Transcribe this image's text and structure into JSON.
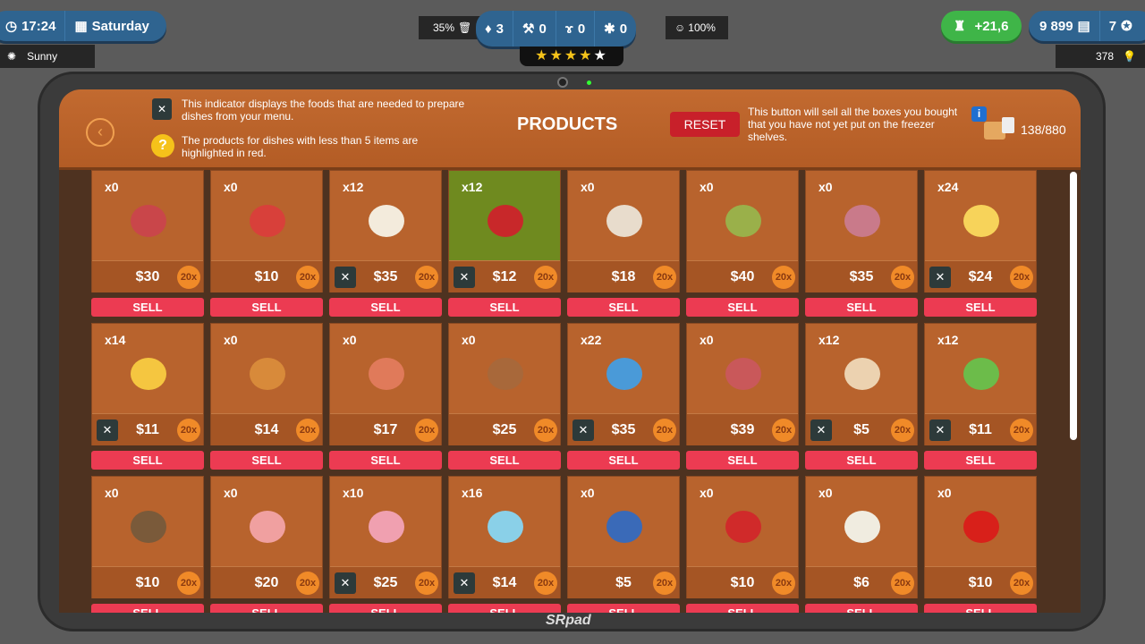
{
  "hud": {
    "time": "17:24",
    "day": "Saturday",
    "weather": "Sunny",
    "trash": "35%",
    "garbage": "3",
    "repairs": "0",
    "rats": "0",
    "bugs": "0",
    "happiness": "100%",
    "stars": 4,
    "stars_max": 5,
    "income": "+21,6",
    "money": "9 899",
    "tokens": "7",
    "lightbulbs": "378"
  },
  "tablet": {
    "brand": "SRpad"
  },
  "header": {
    "title": "PRODUCTS",
    "info1": "This indicator displays the foods that are needed to prepare dishes from your menu.",
    "info2": "The products for dishes with less than 5 items are highlighted in red.",
    "reset_label": "RESET",
    "reset_info": "This button will sell all the boxes you bought that you have not yet put on the freezer shelves.",
    "capacity": "138/880"
  },
  "sell_label": "SELL",
  "bulk_label": "20x",
  "products": [
    {
      "qty": "x0",
      "price": "$30",
      "menu": false,
      "icon": "salami",
      "color": "#c9464a"
    },
    {
      "qty": "x0",
      "price": "$10",
      "menu": false,
      "icon": "tomato",
      "color": "#d8403a"
    },
    {
      "qty": "x12",
      "price": "$35",
      "menu": true,
      "icon": "mozzarella",
      "color": "#f3ebdc"
    },
    {
      "qty": "x12",
      "price": "$12",
      "menu": true,
      "icon": "ketchup",
      "color": "#c8282a",
      "highlight": true
    },
    {
      "qty": "x0",
      "price": "$18",
      "menu": false,
      "icon": "mushroom",
      "color": "#e8dccc"
    },
    {
      "qty": "x0",
      "price": "$40",
      "menu": false,
      "icon": "olives",
      "color": "#9ab04a"
    },
    {
      "qty": "x0",
      "price": "$35",
      "menu": false,
      "icon": "ham",
      "color": "#c97a8a"
    },
    {
      "qty": "x24",
      "price": "$24",
      "menu": true,
      "icon": "cheese",
      "color": "#f7d35a"
    },
    {
      "qty": "x14",
      "price": "$11",
      "menu": true,
      "icon": "fries",
      "color": "#f5c640"
    },
    {
      "qty": "x0",
      "price": "$14",
      "menu": false,
      "icon": "nuggets",
      "color": "#d88a3a"
    },
    {
      "qty": "x0",
      "price": "$17",
      "menu": false,
      "icon": "sausages",
      "color": "#e07a5a"
    },
    {
      "qty": "x0",
      "price": "$25",
      "menu": false,
      "icon": "kebab",
      "color": "#a8683a"
    },
    {
      "qty": "x22",
      "price": "$35",
      "menu": true,
      "icon": "fish",
      "color": "#4a9ad8"
    },
    {
      "qty": "x0",
      "price": "$39",
      "menu": false,
      "icon": "meat",
      "color": "#c9585a"
    },
    {
      "qty": "x12",
      "price": "$5",
      "menu": true,
      "icon": "dough",
      "color": "#ecd2b0"
    },
    {
      "qty": "x12",
      "price": "$11",
      "menu": true,
      "icon": "lettuce",
      "color": "#6cbc4a"
    },
    {
      "qty": "x0",
      "price": "$10",
      "menu": false,
      "icon": "bread",
      "color": "#7a5a3a"
    },
    {
      "qty": "x0",
      "price": "$20",
      "menu": false,
      "icon": "chicken-leg",
      "color": "#f0a0a0"
    },
    {
      "qty": "x10",
      "price": "$25",
      "menu": true,
      "icon": "chicken",
      "color": "#f0a0b0"
    },
    {
      "qty": "x16",
      "price": "$14",
      "menu": true,
      "icon": "bowl",
      "color": "#8ad0e8"
    },
    {
      "qty": "x0",
      "price": "$5",
      "menu": false,
      "icon": "pasta",
      "color": "#3a6ab8"
    },
    {
      "qty": "x0",
      "price": "$10",
      "menu": false,
      "icon": "cherries",
      "color": "#d02a2a"
    },
    {
      "qty": "x0",
      "price": "$6",
      "menu": false,
      "icon": "eggs",
      "color": "#f0ece0"
    },
    {
      "qty": "x0",
      "price": "$10",
      "menu": false,
      "icon": "apple",
      "color": "#d8201a"
    }
  ]
}
